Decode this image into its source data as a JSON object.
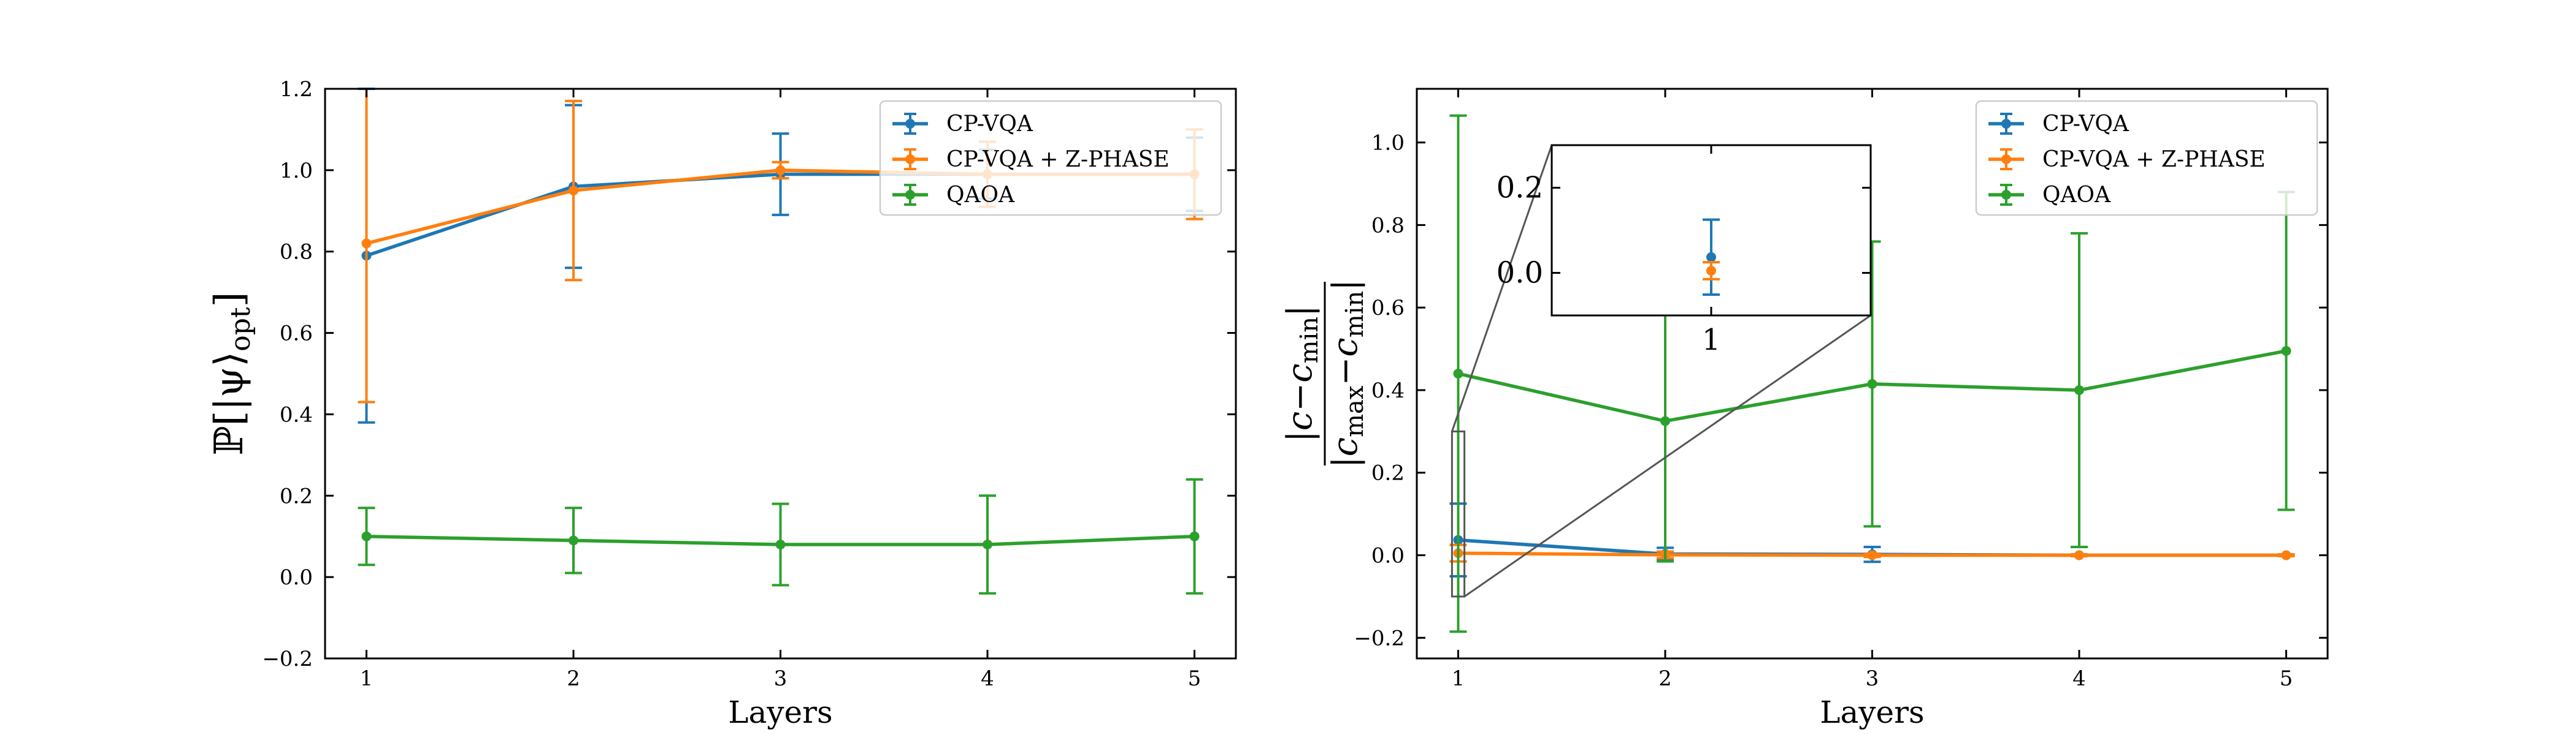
{
  "colors": {
    "cp_vqa": "#1f77b4",
    "cp_vqa_zphase": "#ff7f0e",
    "qaoa": "#2ca02c",
    "zoom_box": "#555555"
  },
  "chart_data": [
    {
      "type": "line",
      "panel": "left",
      "xlabel": "Layers",
      "ylabel": "ℙ[|ψ⟩opt]",
      "ylabel_main": "ℙ[|ψ⟩",
      "ylabel_sub": "opt",
      "ylabel_end": "]",
      "xlim": [
        0.8,
        5.2
      ],
      "ylim": [
        -0.2,
        1.2
      ],
      "xticks": [
        1,
        2,
        3,
        4,
        5
      ],
      "yticks": [
        -0.2,
        0.0,
        0.2,
        0.4,
        0.6,
        0.8,
        1.0,
        1.2
      ],
      "ytick_labels": [
        "−0.2",
        "0.0",
        "0.2",
        "0.4",
        "0.6",
        "0.8",
        "1.0",
        "1.2"
      ],
      "legend_position": "top-right",
      "series": [
        {
          "name": "CP-VQA",
          "color_key": "cp_vqa",
          "x": [
            1,
            2,
            3,
            4,
            5
          ],
          "y": [
            0.79,
            0.96,
            0.99,
            0.99,
            0.99
          ],
          "err": [
            0.41,
            0.2,
            0.1,
            0.06,
            0.09
          ]
        },
        {
          "name": "CP-VQA + Z-PHASE",
          "color_key": "cp_vqa_zphase",
          "x": [
            1,
            2,
            3,
            4,
            5
          ],
          "y": [
            0.82,
            0.95,
            1.0,
            0.99,
            0.99
          ],
          "err": [
            0.39,
            0.22,
            0.02,
            0.08,
            0.11
          ]
        },
        {
          "name": "QAOA",
          "color_key": "qaoa",
          "x": [
            1,
            2,
            3,
            4,
            5
          ],
          "y": [
            0.1,
            0.09,
            0.08,
            0.08,
            0.1
          ],
          "err": [
            0.07,
            0.08,
            0.1,
            0.12,
            0.14
          ]
        }
      ]
    },
    {
      "type": "line",
      "panel": "right",
      "xlabel": "Layers",
      "ylabel": "|c−cmin| / |cmax−cmin|",
      "ylabel_num_c": "c−c",
      "ylabel_num_sub": "min",
      "ylabel_den_c1": "c",
      "ylabel_den_sub1": "max",
      "ylabel_den_mid": "−c",
      "ylabel_den_sub2": "min",
      "xlim": [
        0.8,
        5.2
      ],
      "ylim": [
        -0.25,
        1.13
      ],
      "xticks": [
        1,
        2,
        3,
        4,
        5
      ],
      "yticks": [
        -0.2,
        0.0,
        0.2,
        0.4,
        0.6,
        0.8,
        1.0
      ],
      "ytick_labels": [
        "−0.2",
        "0.0",
        "0.2",
        "0.4",
        "0.6",
        "0.8",
        "1.0"
      ],
      "legend_position": "top-right",
      "series": [
        {
          "name": "CP-VQA",
          "color_key": "cp_vqa",
          "x": [
            1,
            2,
            3,
            4,
            5
          ],
          "y": [
            0.037,
            0.003,
            0.002,
            0.0,
            0.0
          ],
          "err": [
            0.088,
            0.015,
            0.018,
            0.002,
            0.002
          ]
        },
        {
          "name": "CP-VQA + Z-PHASE",
          "color_key": "cp_vqa_zphase",
          "x": [
            1,
            2,
            3,
            4,
            5
          ],
          "y": [
            0.005,
            0.001,
            0.0,
            0.0,
            0.0
          ],
          "err": [
            0.02,
            0.008,
            0.004,
            0.002,
            0.002
          ]
        },
        {
          "name": "QAOA",
          "color_key": "qaoa",
          "x": [
            1,
            2,
            3,
            4,
            5
          ],
          "y": [
            0.44,
            0.325,
            0.415,
            0.4,
            0.495
          ],
          "err": [
            0.625,
            0.34,
            0.345,
            0.38,
            0.385
          ]
        }
      ],
      "zoom_region": {
        "xlim": [
          0.97,
          1.03
        ],
        "ylim": [
          -0.1,
          0.3
        ]
      },
      "inset": {
        "xlim": [
          0.9,
          1.1
        ],
        "ylim": [
          -0.1,
          0.3
        ],
        "xticks": [
          1
        ],
        "xtick_labels": [
          "1"
        ],
        "yticks": [
          0.0,
          0.2
        ],
        "ytick_labels": [
          "0.0",
          "0.2"
        ],
        "series_keys": [
          "cp_vqa",
          "cp_vqa_zphase"
        ]
      }
    }
  ]
}
